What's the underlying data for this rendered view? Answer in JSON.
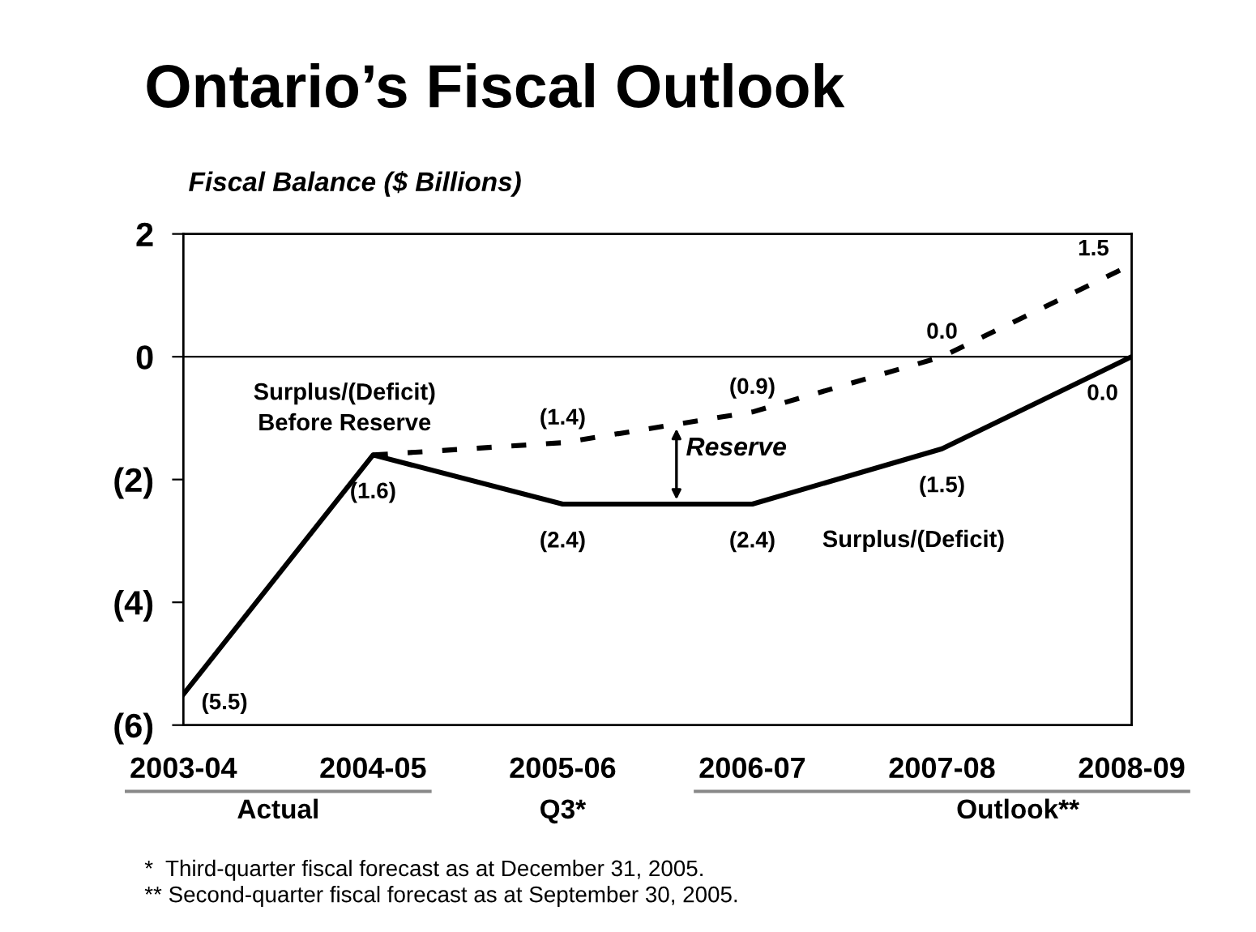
{
  "chart_data": {
    "type": "line",
    "title": "Ontario’s Fiscal Outlook",
    "ylabel": "Fiscal Balance ($ Billions)",
    "categories": [
      "2003-04",
      "2004-05",
      "2005-06",
      "2006-07",
      "2007-08",
      "2008-09"
    ],
    "series": [
      {
        "name": "Surplus/(Deficit)",
        "color": "#000000",
        "line_style": "solid",
        "values": [
          -5.5,
          -1.6,
          -2.4,
          -2.4,
          -1.5,
          0.0
        ],
        "value_labels": [
          "(5.5)",
          "(1.6)",
          "(2.4)",
          "(2.4)",
          "(1.5)",
          "0.0"
        ]
      },
      {
        "name": "Surplus/(Deficit) Before Reserve",
        "color": "#000000",
        "line_style": "dashed",
        "values": [
          null,
          -1.6,
          -1.4,
          -0.9,
          0.0,
          1.5
        ],
        "value_labels": [
          null,
          null,
          "(1.4)",
          "(0.9)",
          "0.0",
          "1.5"
        ]
      }
    ],
    "ylim": [
      -6,
      2
    ],
    "yticks": [
      {
        "value": 2,
        "label": "2"
      },
      {
        "value": 0,
        "label": "0"
      },
      {
        "value": -2,
        "label": "(2)"
      },
      {
        "value": -4,
        "label": "(4)"
      },
      {
        "value": -6,
        "label": "(6)"
      }
    ],
    "ref_lines": [
      {
        "axis": "y",
        "value": 0,
        "label": null,
        "color": "#000000"
      }
    ],
    "annotations": [
      "Reserve",
      "Actual",
      "Q3*",
      "Outlook**",
      "*  Third-quarter fiscal forecast as at December 31, 2005.",
      "** Second-quarter fiscal forecast as at September 30, 2005."
    ],
    "grid": false,
    "legend": false,
    "marker": "none"
  }
}
